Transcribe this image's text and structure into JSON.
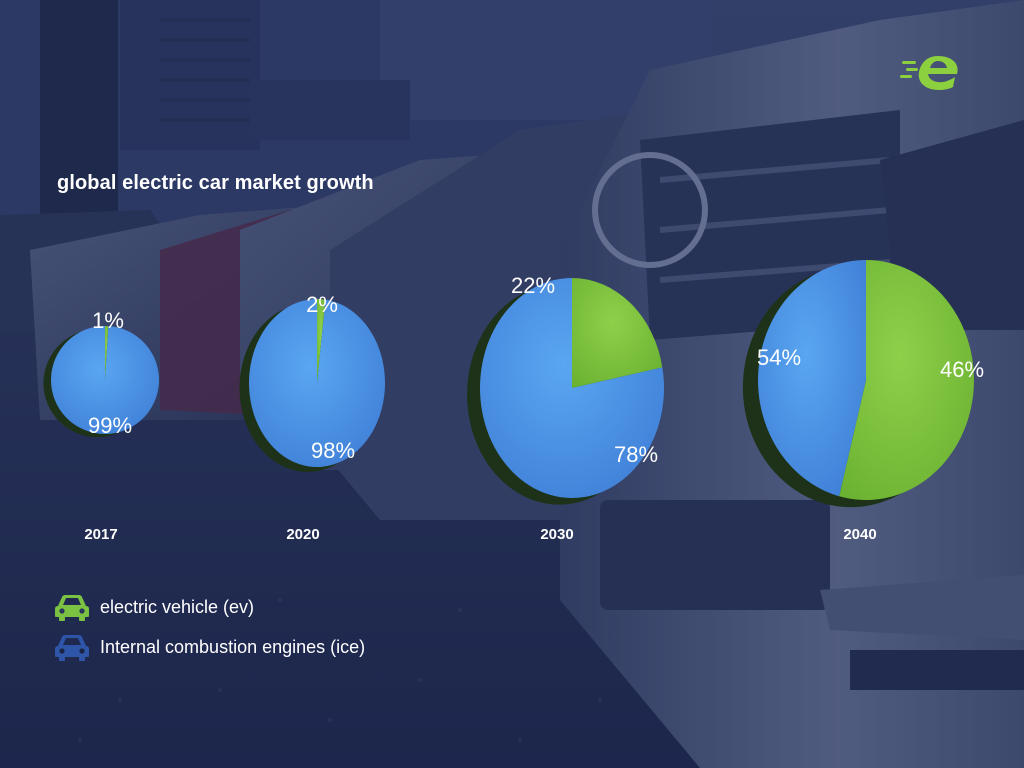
{
  "title": "global electric car market growth",
  "colors": {
    "ev": "#7bc142",
    "ice": "#4a8de0",
    "background": "#27335a",
    "text": "#ffffff"
  },
  "logo_icon": "electric-e-logo",
  "chart_data": [
    {
      "type": "pie",
      "label": "2017",
      "slices": [
        {
          "name": "electric vehicle (ev)",
          "value": 1,
          "label": "1%"
        },
        {
          "name": "Internal combustion engines (ice)",
          "value": 99,
          "label": "99%"
        }
      ]
    },
    {
      "type": "pie",
      "label": "2020",
      "slices": [
        {
          "name": "electric vehicle (ev)",
          "value": 2,
          "label": "2%"
        },
        {
          "name": "Internal combustion engines (ice)",
          "value": 98,
          "label": "98%"
        }
      ]
    },
    {
      "type": "pie",
      "label": "2030",
      "slices": [
        {
          "name": "electric vehicle (ev)",
          "value": 22,
          "label": "22%"
        },
        {
          "name": "Internal combustion engines (ice)",
          "value": 78,
          "label": "78%"
        }
      ]
    },
    {
      "type": "pie",
      "label": "2040",
      "slices": [
        {
          "name": "electric vehicle (ev)",
          "value": 54,
          "label": "54%"
        },
        {
          "name": "Internal combustion engines (ice)",
          "value": 46,
          "label": "46%"
        }
      ]
    }
  ],
  "legend": [
    {
      "label": "electric vehicle (ev)",
      "icon": "car-icon",
      "color": "#7bc142"
    },
    {
      "label": "Internal combustion engines (ice)",
      "icon": "car-icon",
      "color": "#2f55a8"
    }
  ]
}
